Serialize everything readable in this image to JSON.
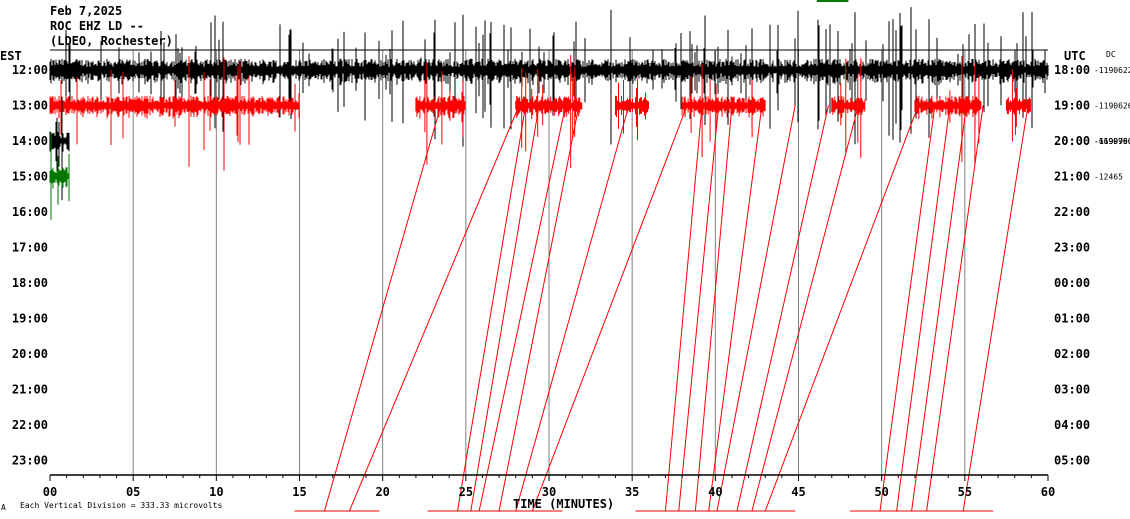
{
  "header": {
    "date": "Feb 7,2025",
    "station": "ROC EHZ LD --",
    "network": "(LDEO, Rochester)"
  },
  "left_axis_title": "EST",
  "right_axis_title": "UTC",
  "dc_label": "DC",
  "x_axis_title": "TIME (MINUTES)",
  "footer_note": "Each Vertical Division =  333.33 microvolts",
  "footer_mark": "A",
  "colors": {
    "black": "#000000",
    "red": "#ff0000",
    "green": "#007700",
    "grid": "#808080"
  },
  "chart_data": {
    "type": "line",
    "xlim": [
      0,
      60
    ],
    "x_ticks": [
      "00",
      "05",
      "10",
      "15",
      "20",
      "25",
      "30",
      "35",
      "40",
      "45",
      "50",
      "55",
      "60"
    ],
    "rows_est": [
      "12:00",
      "13:00",
      "14:00",
      "15:00",
      "16:00",
      "17:00",
      "18:00",
      "19:00",
      "20:00",
      "21:00",
      "22:00",
      "23:00"
    ],
    "rows_utc": [
      "18:00",
      "19:00",
      "20:00",
      "21:00",
      "22:00",
      "23:00",
      "00:00",
      "01:00",
      "02:00",
      "03:00",
      "04:00",
      "05:00"
    ],
    "dc_values": [
      "-1190622",
      "-1190626",
      "-1190760",
      "-12465"
    ],
    "dc_overlap_values": [
      "-1190760",
      "-669999"
    ],
    "series": [
      {
        "color": "black",
        "hour_row": 0,
        "amplitude": "large",
        "active_minutes": [
          [
            0,
            60
          ]
        ]
      },
      {
        "color": "red",
        "hour_row": 1,
        "active_minutes": [
          [
            0,
            15
          ],
          [
            22,
            25
          ],
          [
            28,
            32
          ],
          [
            34,
            36
          ],
          [
            38,
            43
          ],
          [
            47,
            49
          ],
          [
            52,
            56
          ],
          [
            57.5,
            59
          ]
        ]
      },
      {
        "color": "black",
        "hour_row": 2,
        "active_minutes": [
          [
            0,
            1.2
          ]
        ]
      },
      {
        "color": "green",
        "hour_row": 3,
        "active_minutes": [
          [
            0,
            1.2
          ]
        ]
      }
    ],
    "red_clipping_lines": [
      {
        "from_minute": 23.5,
        "to_minute": 16.5
      },
      {
        "from_minute": 28.2,
        "to_minute": 18.0
      },
      {
        "from_minute": 28.6,
        "to_minute": 24.5
      },
      {
        "from_minute": 29.4,
        "to_minute": 25.3
      },
      {
        "from_minute": 31.0,
        "to_minute": 25.8
      },
      {
        "from_minute": 31.8,
        "to_minute": 27.0
      },
      {
        "from_minute": 34.8,
        "to_minute": 28.0
      },
      {
        "from_minute": 38.3,
        "to_minute": 29.0
      },
      {
        "from_minute": 39.2,
        "to_minute": 37.0
      },
      {
        "from_minute": 40.2,
        "to_minute": 37.8
      },
      {
        "from_minute": 41.0,
        "to_minute": 38.8
      },
      {
        "from_minute": 42.8,
        "to_minute": 39.6
      },
      {
        "from_minute": 44.8,
        "to_minute": 40.1
      },
      {
        "from_minute": 46.8,
        "to_minute": 41.3
      },
      {
        "from_minute": 48.6,
        "to_minute": 42.2
      },
      {
        "from_minute": 52.2,
        "to_minute": 43.0
      },
      {
        "from_minute": 53.2,
        "to_minute": 49.9
      },
      {
        "from_minute": 54.1,
        "to_minute": 50.9
      },
      {
        "from_minute": 55.1,
        "to_minute": 51.8
      },
      {
        "from_minute": 56.1,
        "to_minute": 52.7
      },
      {
        "from_minute": 58.8,
        "to_minute": 54.9
      }
    ],
    "legend_mark_color": "#007700",
    "legend_mark_minutes": [
      46.1,
      48.0
    ]
  }
}
